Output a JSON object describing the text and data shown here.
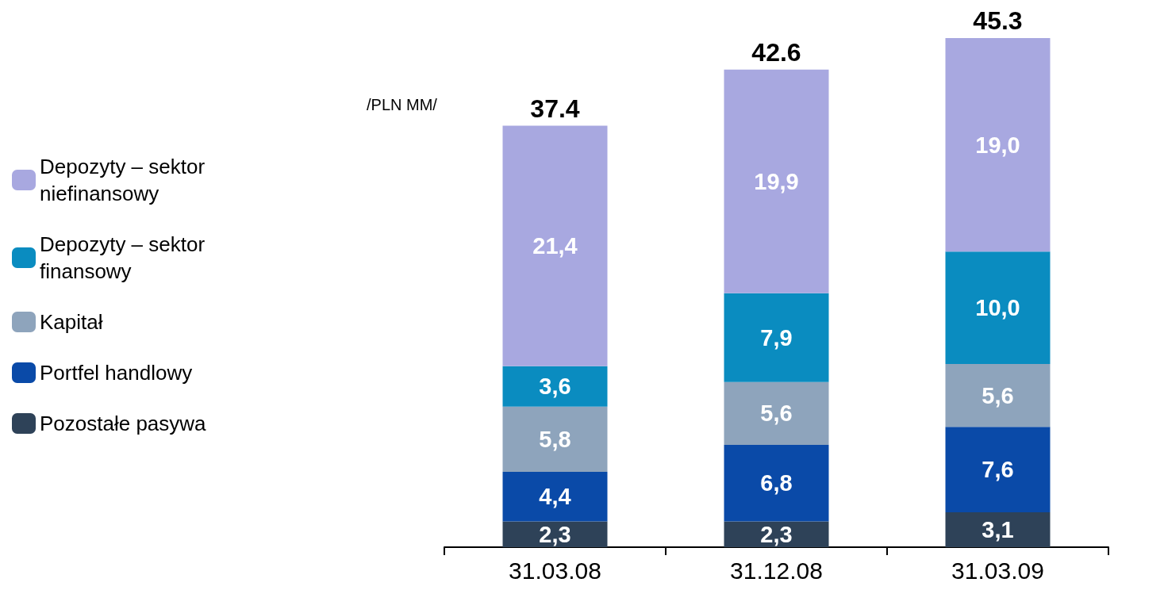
{
  "chart_data": {
    "type": "bar",
    "stacked": true,
    "categories": [
      "31.03.08",
      "31.12.08",
      "31.03.09"
    ],
    "series": [
      {
        "name": "Pozostałe pasywa",
        "color": "#2e4258",
        "values": [
          2.3,
          2.3,
          3.1
        ],
        "value_labels": [
          "2,3",
          "2,3",
          "3,1"
        ]
      },
      {
        "name": "Portfel handlowy",
        "color": "#0a4aa8",
        "values": [
          4.4,
          6.8,
          7.6
        ],
        "value_labels": [
          "4,4",
          "6,8",
          "7,6"
        ]
      },
      {
        "name": "Kapitał",
        "color": "#8ea4bc",
        "values": [
          5.8,
          5.6,
          5.6
        ],
        "value_labels": [
          "5,8",
          "5,6",
          "5,6"
        ]
      },
      {
        "name": "Depozyty – sektor finansowy",
        "color": "#0a8cc0",
        "values": [
          3.6,
          7.9,
          10.0
        ],
        "value_labels": [
          "3,6",
          "7,9",
          "10,0"
        ]
      },
      {
        "name": "Depozyty – sektor niefinansowy",
        "color": "#a8a8e0",
        "values": [
          21.4,
          19.9,
          19.0
        ],
        "value_labels": [
          "21,4",
          "19,9",
          "19,0"
        ]
      }
    ],
    "totals": [
      "37.4",
      "42.6",
      "45.3"
    ],
    "annotations": [
      "/PLN MM/"
    ],
    "legend": "left"
  }
}
